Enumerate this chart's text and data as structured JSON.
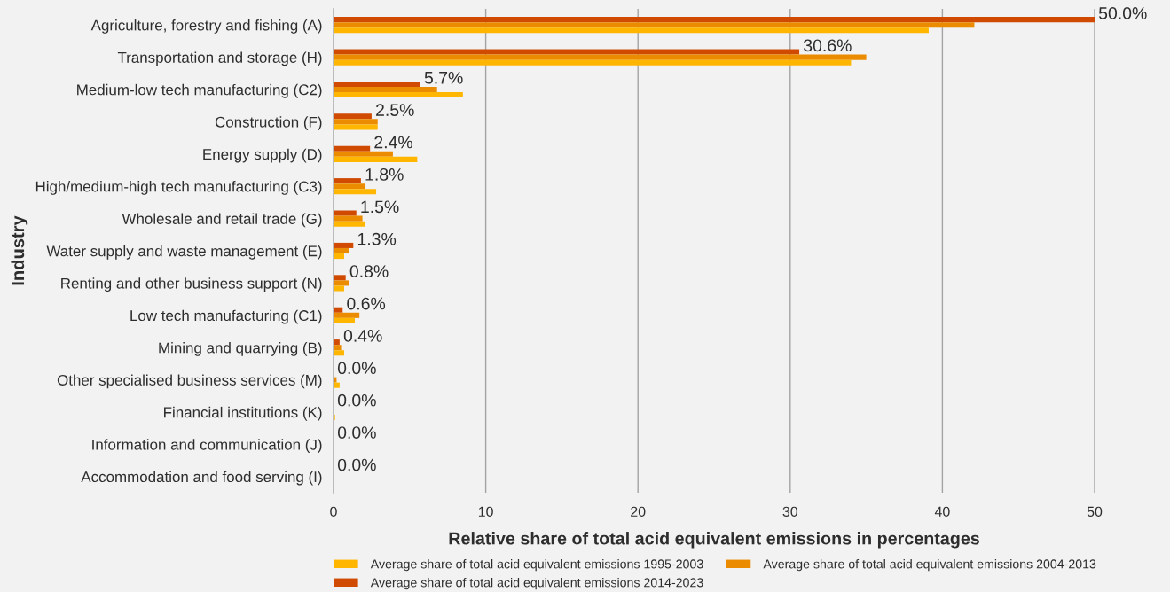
{
  "chart_data": {
    "type": "bar",
    "orientation": "horizontal",
    "xlabel": "Relative share of total acid equivalent emissions in percentages",
    "ylabel": "Industry",
    "categories": [
      "Agriculture, forestry and fishing (A)",
      "Transportation and storage (H)",
      "Medium-low tech manufacturing (C2)",
      "Construction (F)",
      "Energy supply (D)",
      "High/medium-high tech manufacturing (C3)",
      "Wholesale and retail trade (G)",
      "Water supply and waste management (E)",
      "Renting and other business support (N)",
      "Low tech manufacturing (C1)",
      "Mining and quarrying (B)",
      "Other specialised business services (M)",
      "Financial institutions (K)",
      "Information and communication (J)",
      "Accommodation and food serving (I)"
    ],
    "series": [
      {
        "name": "Average share of total acid equivalent emissions 1995-2003",
        "color": "#ffb600",
        "values": [
          39.1,
          34.0,
          8.5,
          2.9,
          5.5,
          2.8,
          2.1,
          0.7,
          0.7,
          1.4,
          0.7,
          0.4,
          0.1,
          0.0,
          0.0
        ]
      },
      {
        "name": "Average share of total acid equivalent emissions 2004-2013",
        "color": "#eb8c00",
        "values": [
          42.1,
          35.0,
          6.8,
          2.9,
          3.9,
          2.1,
          1.9,
          1.0,
          1.0,
          1.7,
          0.5,
          0.2,
          0.0,
          0.0,
          0.0
        ]
      },
      {
        "name": "Average share of total acid equivalent emissions 2014-2023",
        "color": "#d04a02",
        "values": [
          50.0,
          30.6,
          5.7,
          2.5,
          2.4,
          1.8,
          1.5,
          1.3,
          0.8,
          0.6,
          0.4,
          0.0,
          0.0,
          0.0,
          0.0
        ],
        "value_labels": [
          "50.0%",
          "30.6%",
          "5.7%",
          "2.5%",
          "2.4%",
          "1.8%",
          "1.5%",
          "1.3%",
          "0.8%",
          "0.6%",
          "0.4%",
          "0.0%",
          "0.0%",
          "0.0%",
          "0.0%"
        ]
      }
    ],
    "xlim": [
      0,
      50
    ],
    "xticks": [
      0,
      10,
      20,
      30,
      40,
      50
    ],
    "grid": "x",
    "legend": "bottom"
  }
}
